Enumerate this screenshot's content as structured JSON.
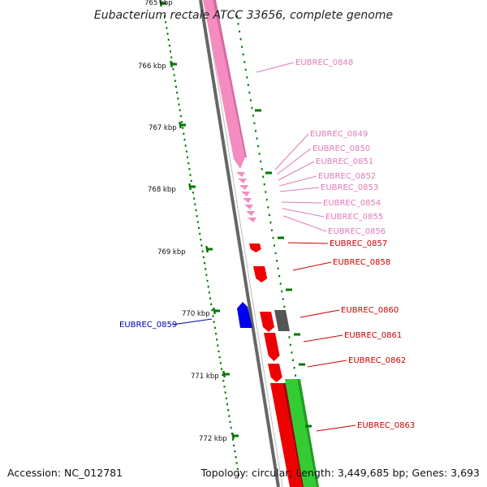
{
  "title": "Eubacterium rectale ATCC 33656, complete genome",
  "accession": "Accession: NC_012781",
  "summary": "Topology: circular; Length: 3,449,685 bp; Genes: 3,693",
  "colors": {
    "pink": "#f48cc0",
    "red": "#ee0000",
    "blue": "#0000ee",
    "grey": "#666666",
    "green": "#33cc33",
    "tick_green": "#007700",
    "label_pink": "#e07ab6",
    "label_red": "#cc0000",
    "label_blue": "#0000aa"
  },
  "ticks": [
    "765 kbp",
    "766 kbp",
    "767 kbp",
    "768 kbp",
    "769 kbp",
    "770 kbp",
    "771 kbp",
    "772 kbp"
  ],
  "genes": [
    {
      "name": "EUBREC_0848",
      "color": "pink"
    },
    {
      "name": "EUBREC_0849",
      "color": "pink"
    },
    {
      "name": "EUBREC_0850",
      "color": "pink"
    },
    {
      "name": "EUBREC_0851",
      "color": "pink"
    },
    {
      "name": "EUBREC_0852",
      "color": "pink"
    },
    {
      "name": "EUBREC_0853",
      "color": "pink"
    },
    {
      "name": "EUBREC_0854",
      "color": "pink"
    },
    {
      "name": "EUBREC_0855",
      "color": "pink"
    },
    {
      "name": "EUBREC_0856",
      "color": "pink"
    },
    {
      "name": "EUBREC_0857",
      "color": "red"
    },
    {
      "name": "EUBREC_0858",
      "color": "red"
    },
    {
      "name": "EUBREC_0859",
      "color": "blue"
    },
    {
      "name": "EUBREC_0860",
      "color": "red"
    },
    {
      "name": "EUBREC_0861",
      "color": "red"
    },
    {
      "name": "EUBREC_0862",
      "color": "red"
    },
    {
      "name": "EUBREC_0863",
      "color": "red"
    }
  ]
}
